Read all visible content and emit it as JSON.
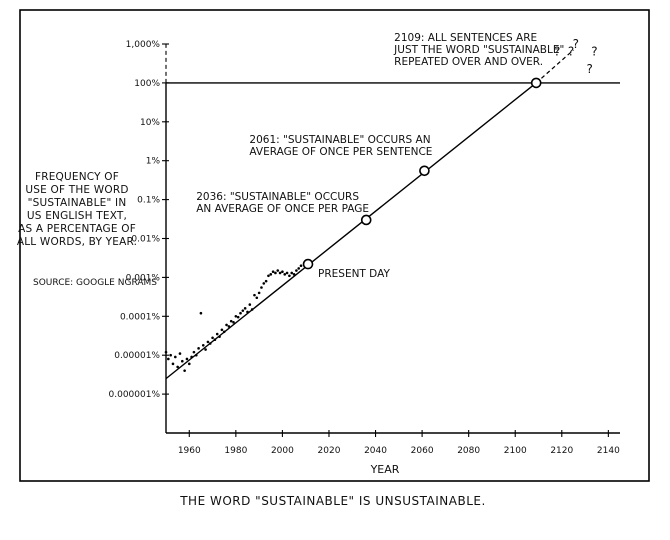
{
  "caption": "THE WORD \"SUSTAINABLE\" IS UNSUSTAINABLE.",
  "chart_data": {
    "type": "scatter",
    "xlabel": "YEAR",
    "ylabel_lines": [
      "FREQUENCY OF",
      "USE OF THE WORD",
      "\"SUSTAINABLE\" IN",
      "US ENGLISH TEXT,",
      "AS A PERCENTAGE OF",
      "ALL WORDS, BY YEAR."
    ],
    "source": "SOURCE: GOOGLE NGRAMS",
    "y_scale": "log",
    "xlim": [
      1950,
      2145
    ],
    "ylim": [
      1e-07,
      1000
    ],
    "x_ticks": [
      1960,
      1980,
      2000,
      2020,
      2040,
      2060,
      2080,
      2100,
      2120,
      2140
    ],
    "y_ticks": [
      {
        "value": 1000,
        "label": "1,000%"
      },
      {
        "value": 100,
        "label": "100%"
      },
      {
        "value": 10,
        "label": "10%"
      },
      {
        "value": 1,
        "label": "1%"
      },
      {
        "value": 0.1,
        "label": "0.1%"
      },
      {
        "value": 0.01,
        "label": "0.01%"
      },
      {
        "value": 0.001,
        "label": "0.001%"
      },
      {
        "value": 0.0001,
        "label": "0.0001%"
      },
      {
        "value": 1e-05,
        "label": "0.00001%"
      },
      {
        "value": 1e-06,
        "label": "0.000001%"
      }
    ],
    "reference_lines": [
      {
        "axis": "y",
        "value": 100
      },
      {
        "axis": "x",
        "value": 1950,
        "from": 100,
        "to": 1000,
        "style": "dashed"
      }
    ],
    "trend_line": {
      "x": [
        1950,
        2109
      ],
      "y": [
        2.5e-06,
        100
      ]
    },
    "trend_extension": {
      "x": [
        2109,
        2125
      ],
      "y": [
        100,
        700
      ],
      "style": "dashed"
    },
    "question_marks": [
      {
        "x": 2118,
        "y": 500,
        "text": "?"
      },
      {
        "x": 2124,
        "y": 500,
        "text": "?"
      },
      {
        "x": 2126,
        "y": 800,
        "text": "?"
      },
      {
        "x": 2134,
        "y": 500,
        "text": "?"
      },
      {
        "x": 2132,
        "y": 180,
        "text": "?"
      }
    ],
    "series": [
      {
        "points": [
          {
            "x": 1950,
            "y": 1.2e-05
          },
          {
            "x": 1951,
            "y": 8e-06
          },
          {
            "x": 1952,
            "y": 1e-05
          },
          {
            "x": 1953,
            "y": 6e-06
          },
          {
            "x": 1954,
            "y": 9e-06
          },
          {
            "x": 1955,
            "y": 5e-06
          },
          {
            "x": 1956,
            "y": 1.1e-05
          },
          {
            "x": 1957,
            "y": 7e-06
          },
          {
            "x": 1958,
            "y": 4e-06
          },
          {
            "x": 1959,
            "y": 8e-06
          },
          {
            "x": 1960,
            "y": 6e-06
          },
          {
            "x": 1961,
            "y": 9e-06
          },
          {
            "x": 1962,
            "y": 1.2e-05
          },
          {
            "x": 1963,
            "y": 1e-05
          },
          {
            "x": 1964,
            "y": 1.5e-05
          },
          {
            "x": 1965,
            "y": 0.00012
          },
          {
            "x": 1966,
            "y": 1.8e-05
          },
          {
            "x": 1967,
            "y": 1.4e-05
          },
          {
            "x": 1968,
            "y": 2.2e-05
          },
          {
            "x": 1969,
            "y": 2e-05
          },
          {
            "x": 1970,
            "y": 2.8e-05
          },
          {
            "x": 1971,
            "y": 2.5e-05
          },
          {
            "x": 1972,
            "y": 3.5e-05
          },
          {
            "x": 1973,
            "y": 3e-05
          },
          {
            "x": 1974,
            "y": 4.5e-05
          },
          {
            "x": 1975,
            "y": 4e-05
          },
          {
            "x": 1976,
            "y": 6e-05
          },
          {
            "x": 1977,
            "y": 5.5e-05
          },
          {
            "x": 1978,
            "y": 7.5e-05
          },
          {
            "x": 1979,
            "y": 7e-05
          },
          {
            "x": 1980,
            "y": 0.0001
          },
          {
            "x": 1981,
            "y": 9.5e-05
          },
          {
            "x": 1982,
            "y": 0.00012
          },
          {
            "x": 1983,
            "y": 0.00014
          },
          {
            "x": 1984,
            "y": 0.00016
          },
          {
            "x": 1985,
            "y": 0.00013
          },
          {
            "x": 1986,
            "y": 0.0002
          },
          {
            "x": 1987,
            "y": 0.00015
          },
          {
            "x": 1988,
            "y": 0.00035
          },
          {
            "x": 1989,
            "y": 0.0003
          },
          {
            "x": 1990,
            "y": 0.0004
          },
          {
            "x": 1991,
            "y": 0.00055
          },
          {
            "x": 1992,
            "y": 0.0007
          },
          {
            "x": 1993,
            "y": 0.0008
          },
          {
            "x": 1994,
            "y": 0.0011
          },
          {
            "x": 1995,
            "y": 0.0012
          },
          {
            "x": 1996,
            "y": 0.0014
          },
          {
            "x": 1997,
            "y": 0.0013
          },
          {
            "x": 1998,
            "y": 0.0015
          },
          {
            "x": 1999,
            "y": 0.0013
          },
          {
            "x": 2000,
            "y": 0.0014
          },
          {
            "x": 2001,
            "y": 0.0012
          },
          {
            "x": 2002,
            "y": 0.0013
          },
          {
            "x": 2003,
            "y": 0.0011
          },
          {
            "x": 2004,
            "y": 0.0013
          },
          {
            "x": 2005,
            "y": 0.0012
          },
          {
            "x": 2006,
            "y": 0.0015
          },
          {
            "x": 2007,
            "y": 0.0017
          },
          {
            "x": 2008,
            "y": 0.002
          }
        ]
      }
    ],
    "annotations": [
      {
        "x": 2011,
        "y": 0.0022,
        "lines": [
          "PRESENT DAY"
        ],
        "circle": true
      },
      {
        "x": 2036,
        "y": 0.03,
        "lines": [
          "2036: \"SUSTAINABLE\" OCCURS",
          "AN AVERAGE OF ONCE PER PAGE"
        ],
        "circle": true
      },
      {
        "x": 2061,
        "y": 0.55,
        "lines": [
          "2061: \"SUSTAINABLE\" OCCURS AN",
          "AVERAGE OF ONCE PER SENTENCE"
        ],
        "circle": true
      },
      {
        "x": 2109,
        "y": 100,
        "lines": [
          "2109: ALL SENTENCES ARE",
          "JUST THE WORD \"SUSTAINABLE\"",
          "REPEATED OVER AND OVER."
        ],
        "circle": true
      }
    ]
  }
}
